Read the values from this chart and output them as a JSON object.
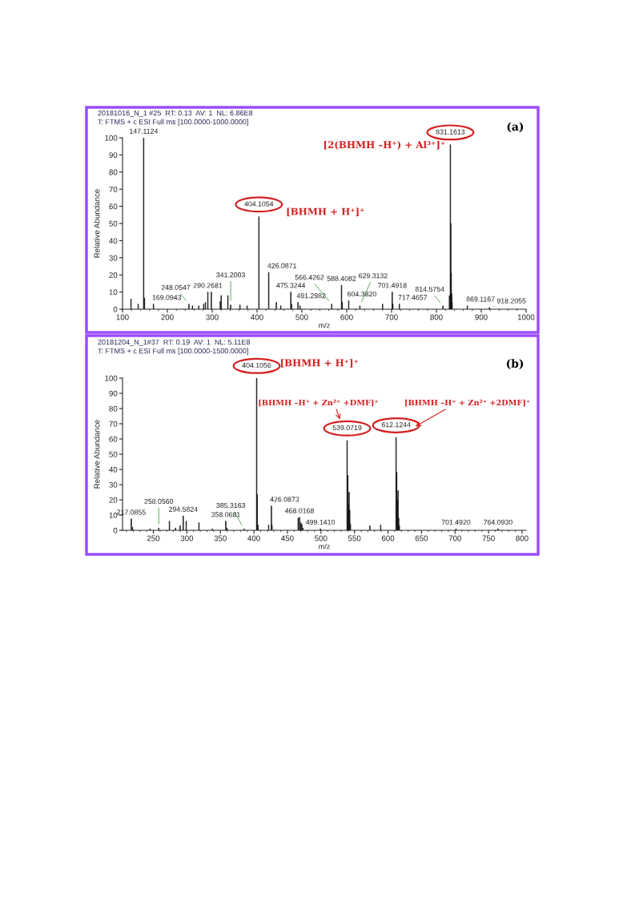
{
  "chart_data": [
    {
      "type": "bar",
      "title": "20181016_N_1 #25  RT: 0.13  AV: 1  NL: 6.86E8",
      "subtitle": "T: FTMS + c ESI Full ms [100.0000-1000.0000]",
      "xlabel": "m/z",
      "ylabel": "Relative Abundance",
      "color": "#111111",
      "grid": false,
      "xlim": [
        100,
        1000
      ],
      "xticks": [
        100,
        200,
        300,
        400,
        500,
        600,
        700,
        800,
        900,
        1000
      ],
      "ylim": [
        0,
        100
      ],
      "yticks": [
        0,
        10,
        20,
        30,
        40,
        50,
        60,
        70,
        80,
        90,
        100
      ],
      "x": [
        119,
        135,
        147.1124,
        149,
        169.0943,
        248.0547,
        256,
        270,
        281,
        285,
        290.2681,
        298,
        318,
        320,
        335,
        341.2003,
        362,
        378,
        404.1054,
        426.0871,
        443,
        453,
        475.3244,
        477,
        491.2982,
        496,
        566.4262,
        588.4082,
        590,
        604.382,
        629.3132,
        680,
        701.4918,
        703,
        717.4657,
        814.5754,
        829,
        831.1613,
        832,
        833,
        834,
        835,
        869.1167,
        918.2055
      ],
      "values": [
        6,
        3,
        100,
        6.5,
        3,
        3,
        2,
        2,
        3,
        4,
        10,
        10,
        4.5,
        8,
        8,
        2.5,
        2.5,
        2,
        54,
        21.5,
        4,
        2,
        10,
        3,
        4,
        2,
        3,
        14,
        4,
        5,
        2,
        3,
        10,
        3,
        3,
        2,
        8,
        96,
        50,
        21,
        9,
        4,
        2,
        1
      ],
      "annotations": [
        "(a)",
        "[2(BHMH –H⁺) + Al³⁺]⁺",
        "[BHMH + H⁺]⁺",
        {
          "text": "147.1124",
          "x": 147.1124,
          "y": 100
        },
        {
          "text": "169.0943",
          "x": 169.0943,
          "y": 3
        },
        {
          "text": "248.0547",
          "x": 248.0547,
          "y": 3
        },
        {
          "text": "290.2681",
          "x": 290.2681,
          "y": 10
        },
        {
          "text": "341.2003",
          "x": 341.2003,
          "y": 2.5
        },
        {
          "text": "404.1054",
          "x": 404.1054,
          "y": 54
        },
        {
          "text": "426.0871",
          "x": 426.0871,
          "y": 21.5
        },
        {
          "text": "475.3244",
          "x": 475.3244,
          "y": 10
        },
        {
          "text": "491.2982",
          "x": 491.2982,
          "y": 4
        },
        {
          "text": "566.4262",
          "x": 566.4262,
          "y": 3
        },
        {
          "text": "588.4082",
          "x": 588.4082,
          "y": 14
        },
        {
          "text": "604.3820",
          "x": 604.382,
          "y": 5
        },
        {
          "text": "629.3132",
          "x": 629.3132,
          "y": 2
        },
        {
          "text": "701.4918",
          "x": 701.4918,
          "y": 10
        },
        {
          "text": "717.4657",
          "x": 717.4657,
          "y": 3
        },
        {
          "text": "814.5754",
          "x": 814.5754,
          "y": 2
        },
        {
          "text": "831.1613",
          "x": 831.1613,
          "y": 96
        },
        {
          "text": "869.1167",
          "x": 869.1167,
          "y": 2
        },
        {
          "text": "918.2055",
          "x": 918.2055,
          "y": 1
        }
      ]
    },
    {
      "type": "bar",
      "title": "20181204_N_1#37  RT: 0.19  AV: 1  NL: 5.11E8",
      "subtitle": "T: FTMS + c ESI Full ms [100.0000-1500.0000]",
      "xlabel": "m/z",
      "ylabel": "Relative Abundance",
      "color": "#111111",
      "grid": false,
      "xlim": [
        204,
        806
      ],
      "xticks": [
        250,
        300,
        350,
        400,
        450,
        500,
        550,
        600,
        650,
        700,
        750,
        800
      ],
      "ylim": [
        0,
        100
      ],
      "yticks": [
        0,
        10,
        20,
        30,
        40,
        50,
        60,
        70,
        80,
        90,
        100
      ],
      "x": [
        217.0855,
        219,
        245,
        258.056,
        274,
        283,
        290,
        294.5824,
        299,
        318,
        338,
        358.0681,
        360,
        385.3163,
        404.1056,
        405,
        406,
        422,
        426.0873,
        427,
        466,
        468.0168,
        470,
        471.5,
        473,
        499.141,
        539.0719,
        540,
        541,
        542,
        543,
        544,
        573,
        589,
        612.1244,
        613,
        614,
        615,
        616,
        617,
        701.492,
        764.093
      ],
      "values": [
        7.5,
        2,
        1,
        1.5,
        6,
        1.5,
        3,
        9.5,
        6,
        5,
        1,
        6,
        1.5,
        1,
        100,
        23.5,
        3.5,
        3.5,
        16,
        3.5,
        8,
        8.5,
        5,
        4,
        1.5,
        1,
        59,
        36,
        17,
        25,
        13,
        4,
        3,
        3.5,
        61,
        38,
        20,
        26,
        8,
        3,
        1,
        1
      ],
      "annotations": [
        "(b)",
        "[BHMH + H⁺]⁺",
        "[BHMH –H⁺ + Zn²⁺ +DMF]⁺",
        "[BHMH –H⁺ + Zn²⁺ +2DMF]⁺",
        {
          "text": "217.0855",
          "x": 217.0855,
          "y": 7.5
        },
        {
          "text": "258.0560",
          "x": 258.056,
          "y": 1.5
        },
        {
          "text": "294.5824",
          "x": 294.5824,
          "y": 9.5
        },
        {
          "text": "358.0681",
          "x": 358.0681,
          "y": 6
        },
        {
          "text": "385.3163",
          "x": 385.3163,
          "y": 1
        },
        {
          "text": "404.1056",
          "x": 404.1056,
          "y": 100
        },
        {
          "text": "426.0873",
          "x": 426.0873,
          "y": 16
        },
        {
          "text": "468.0168",
          "x": 468.0168,
          "y": 8.5
        },
        {
          "text": "499.1410",
          "x": 499.141,
          "y": 1
        },
        {
          "text": "539.0719",
          "x": 539.0719,
          "y": 59
        },
        {
          "text": "612.1244",
          "x": 612.1244,
          "y": 61
        },
        {
          "text": "701.4920",
          "x": 701.492,
          "y": 1
        },
        {
          "text": "764.0930",
          "x": 764.093,
          "y": 1
        }
      ]
    }
  ]
}
